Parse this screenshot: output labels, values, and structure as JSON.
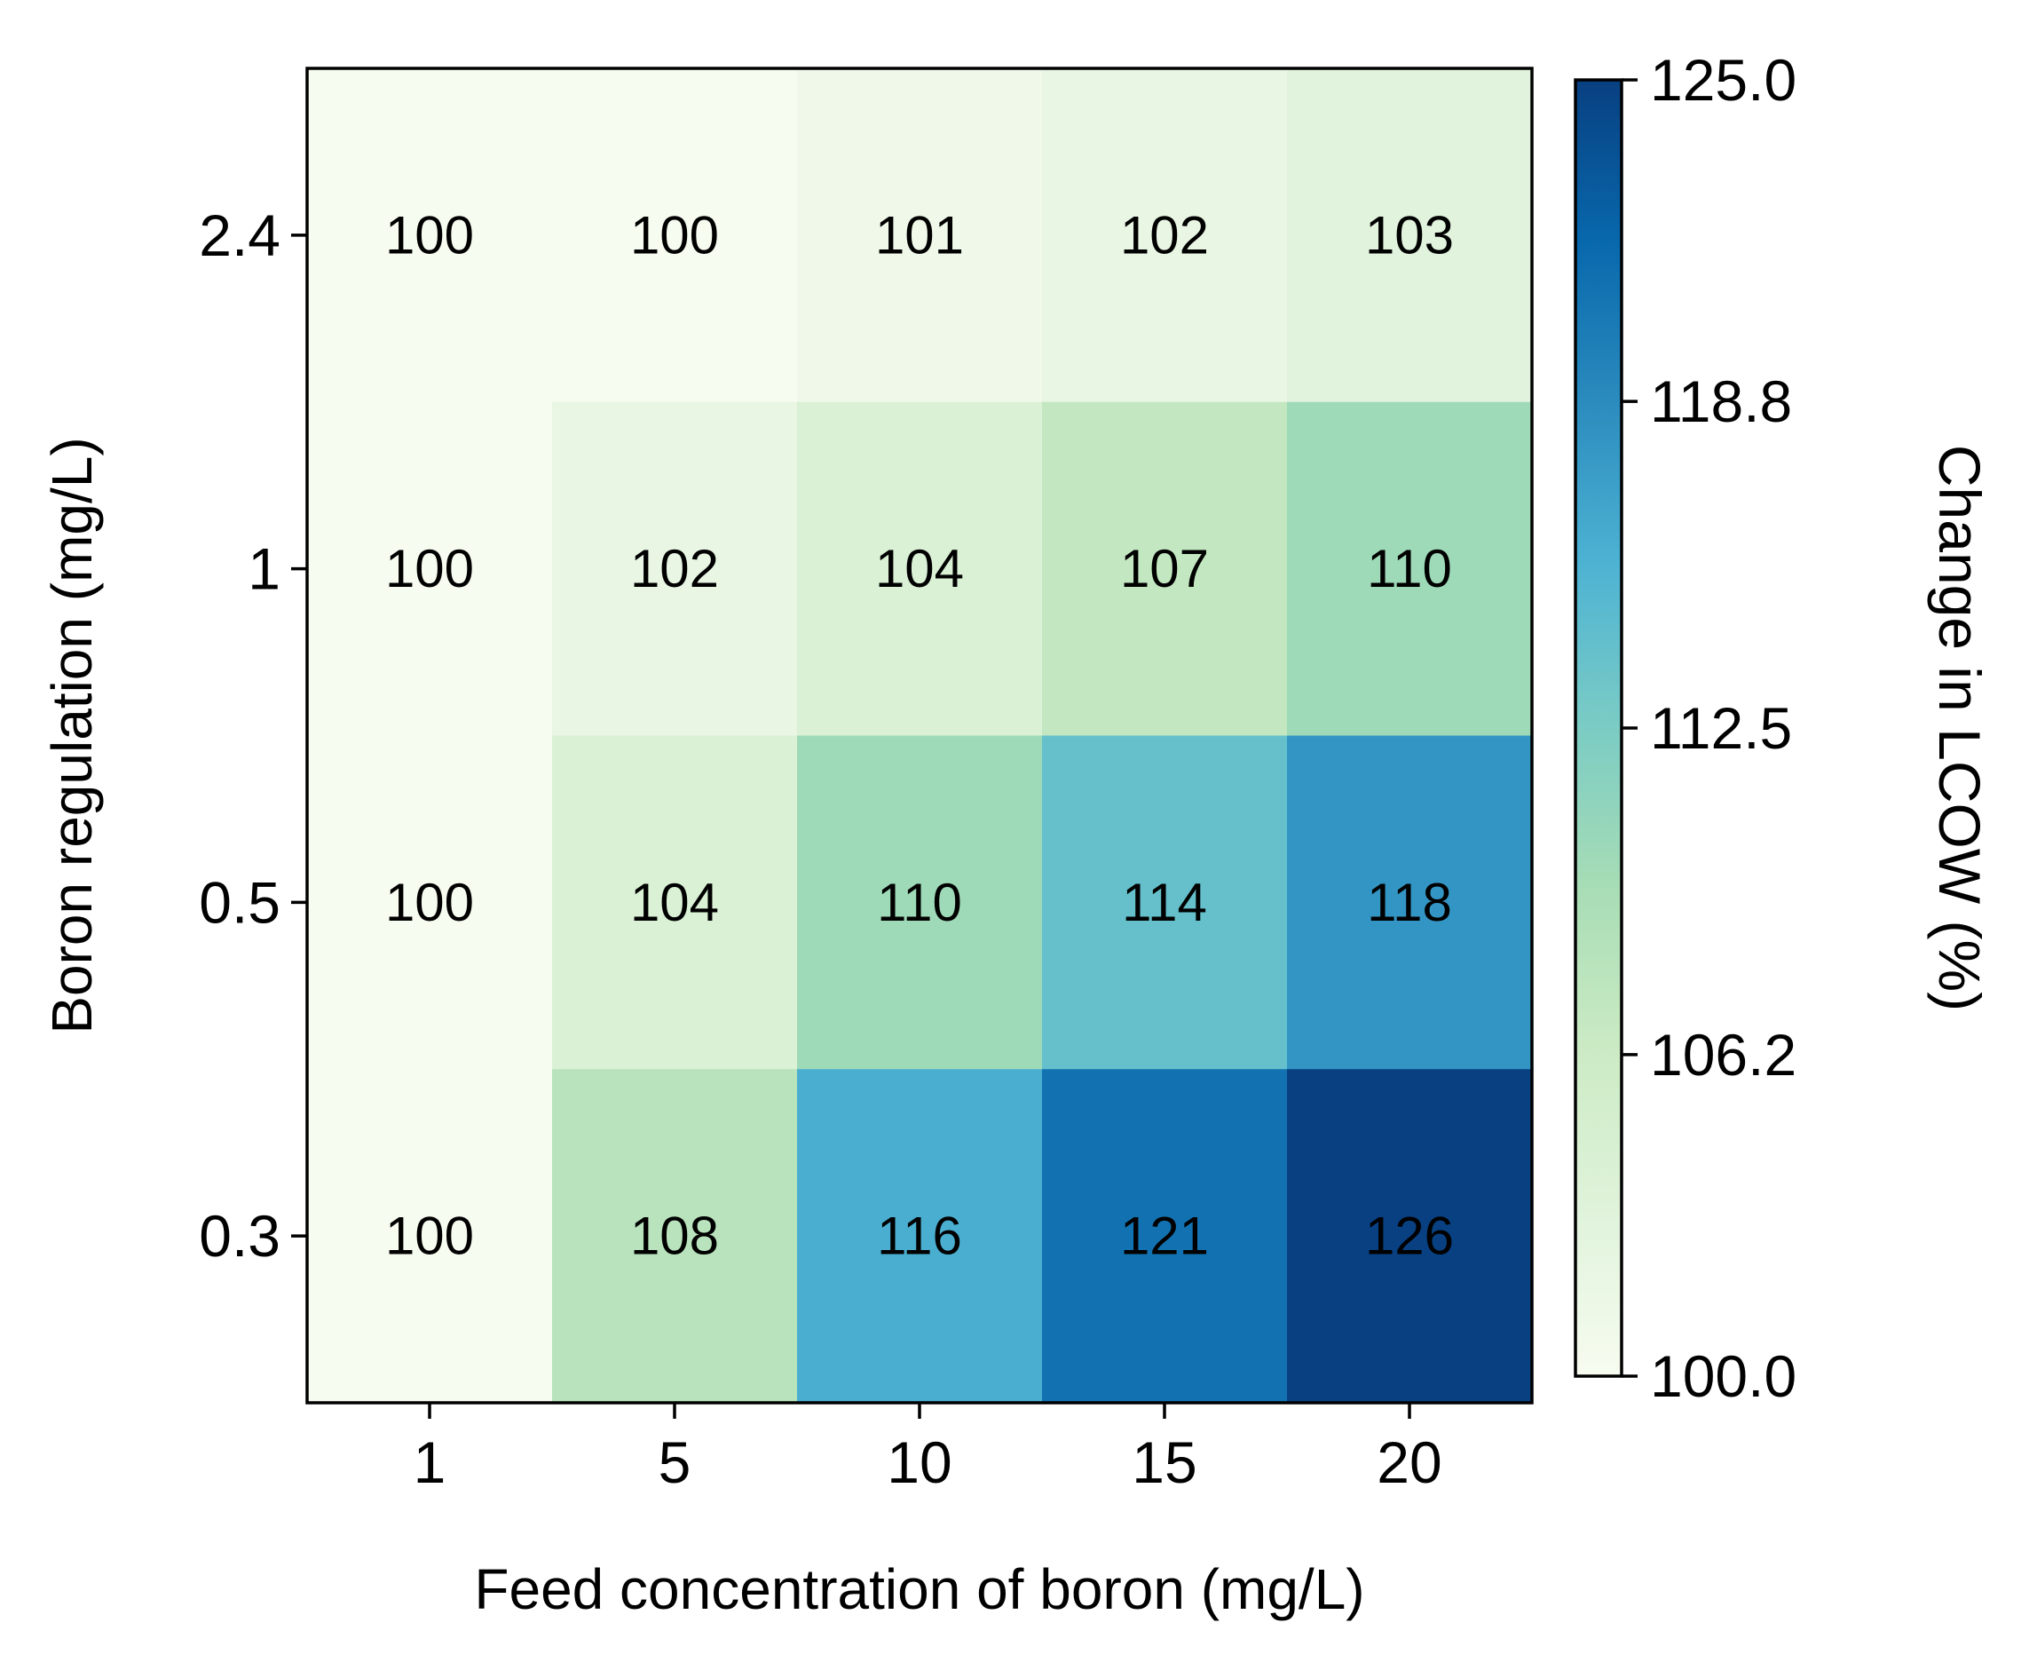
{
  "chart_data": {
    "type": "heatmap",
    "x_categories": [
      "1",
      "5",
      "10",
      "15",
      "20"
    ],
    "y_categories": [
      "2.4",
      "1",
      "0.5",
      "0.3"
    ],
    "values": [
      [
        100,
        100,
        101,
        102,
        103
      ],
      [
        100,
        102,
        104,
        107,
        110
      ],
      [
        100,
        104,
        110,
        114,
        118
      ],
      [
        100,
        108,
        116,
        121,
        126
      ]
    ],
    "xlabel": "Feed concentration of boron (mg/L)",
    "ylabel": "Boron regulation (mg/L)",
    "colorbar": {
      "label": "Change in LCOW (%)",
      "range": [
        100.0,
        125.0
      ],
      "ticks": [
        "100.0",
        "106.2",
        "112.5",
        "118.8",
        "125.0"
      ],
      "colormap": "GnBu",
      "colormap_stops": [
        "#f7fcf0",
        "#e0f3db",
        "#ccebc5",
        "#a8ddb5",
        "#7bccc4",
        "#4eb3d3",
        "#2b8cbe",
        "#0868ac",
        "#084081"
      ]
    },
    "grid": false
  }
}
